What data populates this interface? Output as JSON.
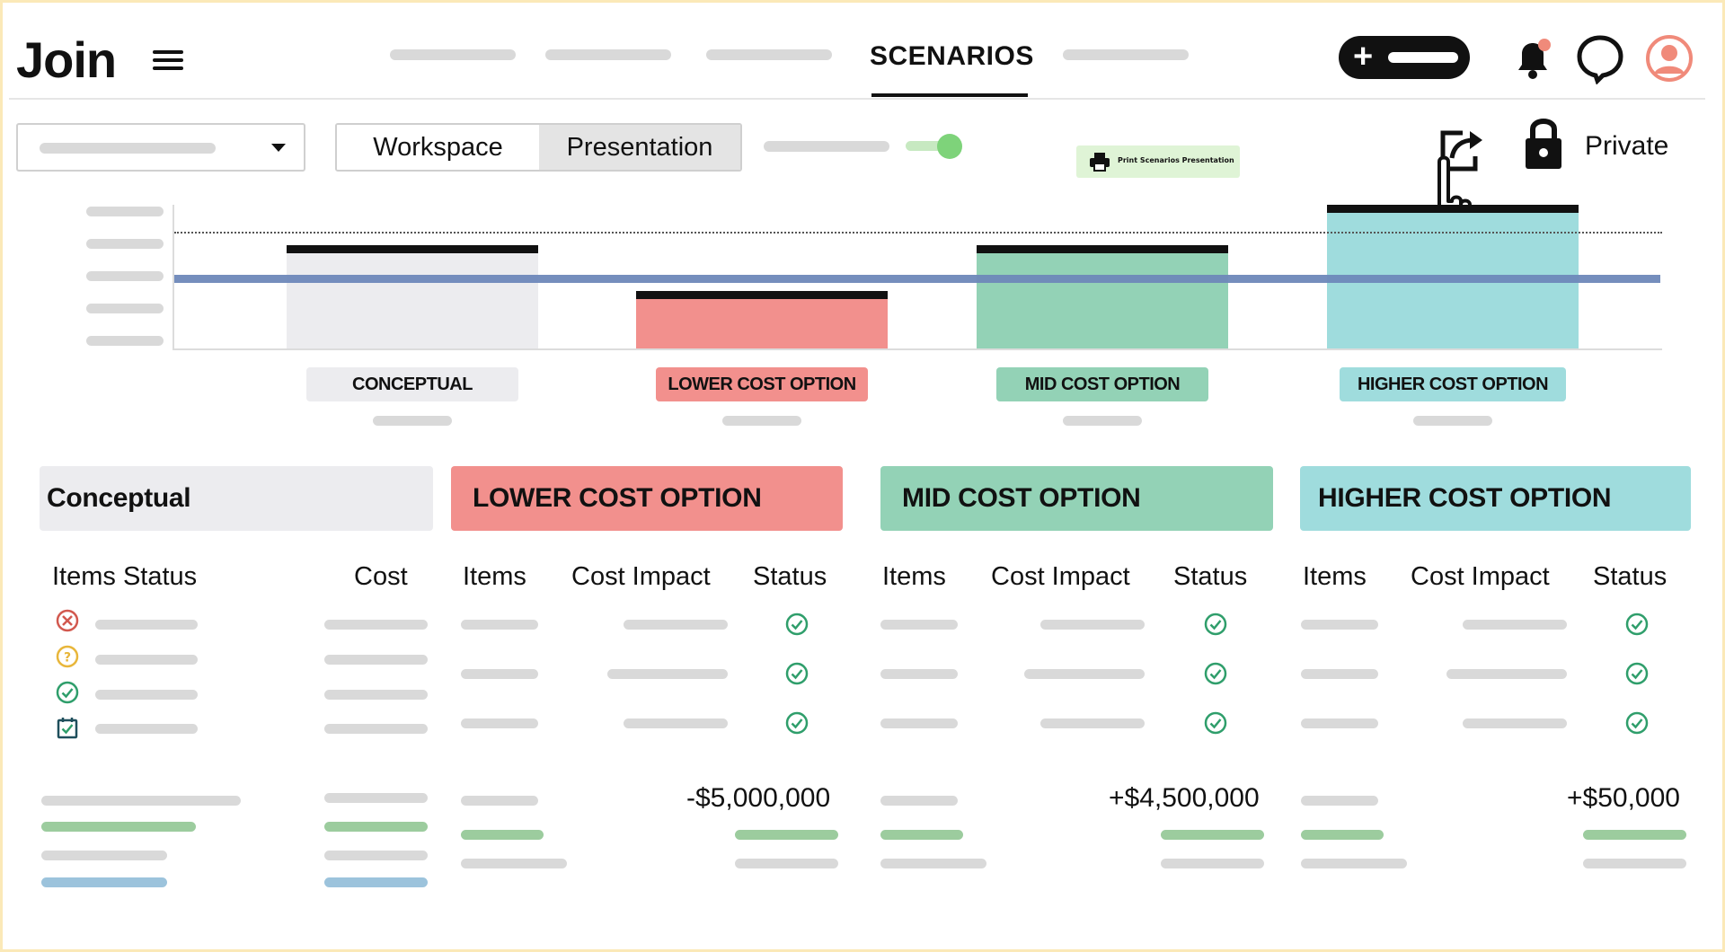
{
  "app": {
    "logo": "Join"
  },
  "nav": {
    "active_tab": "SCENARIOS"
  },
  "toolbar": {
    "segment_workspace": "Workspace",
    "segment_presentation": "Presentation",
    "print_label": "Print Scenarios Presentation",
    "private_label": "Private"
  },
  "chart_data": {
    "type": "bar",
    "categories": [
      "CONCEPTUAL",
      "LOWER COST OPTION",
      "MID COST OPTION",
      "HIGHER COST OPTION"
    ],
    "values": [
      0.72,
      0.4,
      0.72,
      1.0
    ],
    "colors": [
      "#ececef",
      "#f2908d",
      "#93d2b6",
      "#9fdcdd"
    ],
    "reference_lines": {
      "dotted": 0.83,
      "solid_blue": 0.53
    }
  },
  "scenarios": {
    "conceptual": {
      "title": "Conceptual",
      "col_items_status": "Items Status",
      "col_cost": "Cost"
    },
    "lower": {
      "title": "LOWER COST OPTION",
      "col_items": "Items",
      "col_cost_impact": "Cost Impact",
      "col_status": "Status",
      "total": "-$5,000,000"
    },
    "mid": {
      "title": "MID COST OPTION",
      "col_items": "Items",
      "col_cost_impact": "Cost Impact",
      "col_status": "Status",
      "total": "+$4,500,000"
    },
    "higher": {
      "title": "HIGHER COST OPTION",
      "col_items": "Items",
      "col_cost_impact": "Cost Impact",
      "col_status": "Status",
      "total": "+$50,000"
    }
  },
  "colors": {
    "conceptual": "#ececef",
    "lower": "#f2908d",
    "mid": "#93d2b6",
    "higher": "#9fdcdd",
    "status_ok": "#2f9e6b"
  }
}
